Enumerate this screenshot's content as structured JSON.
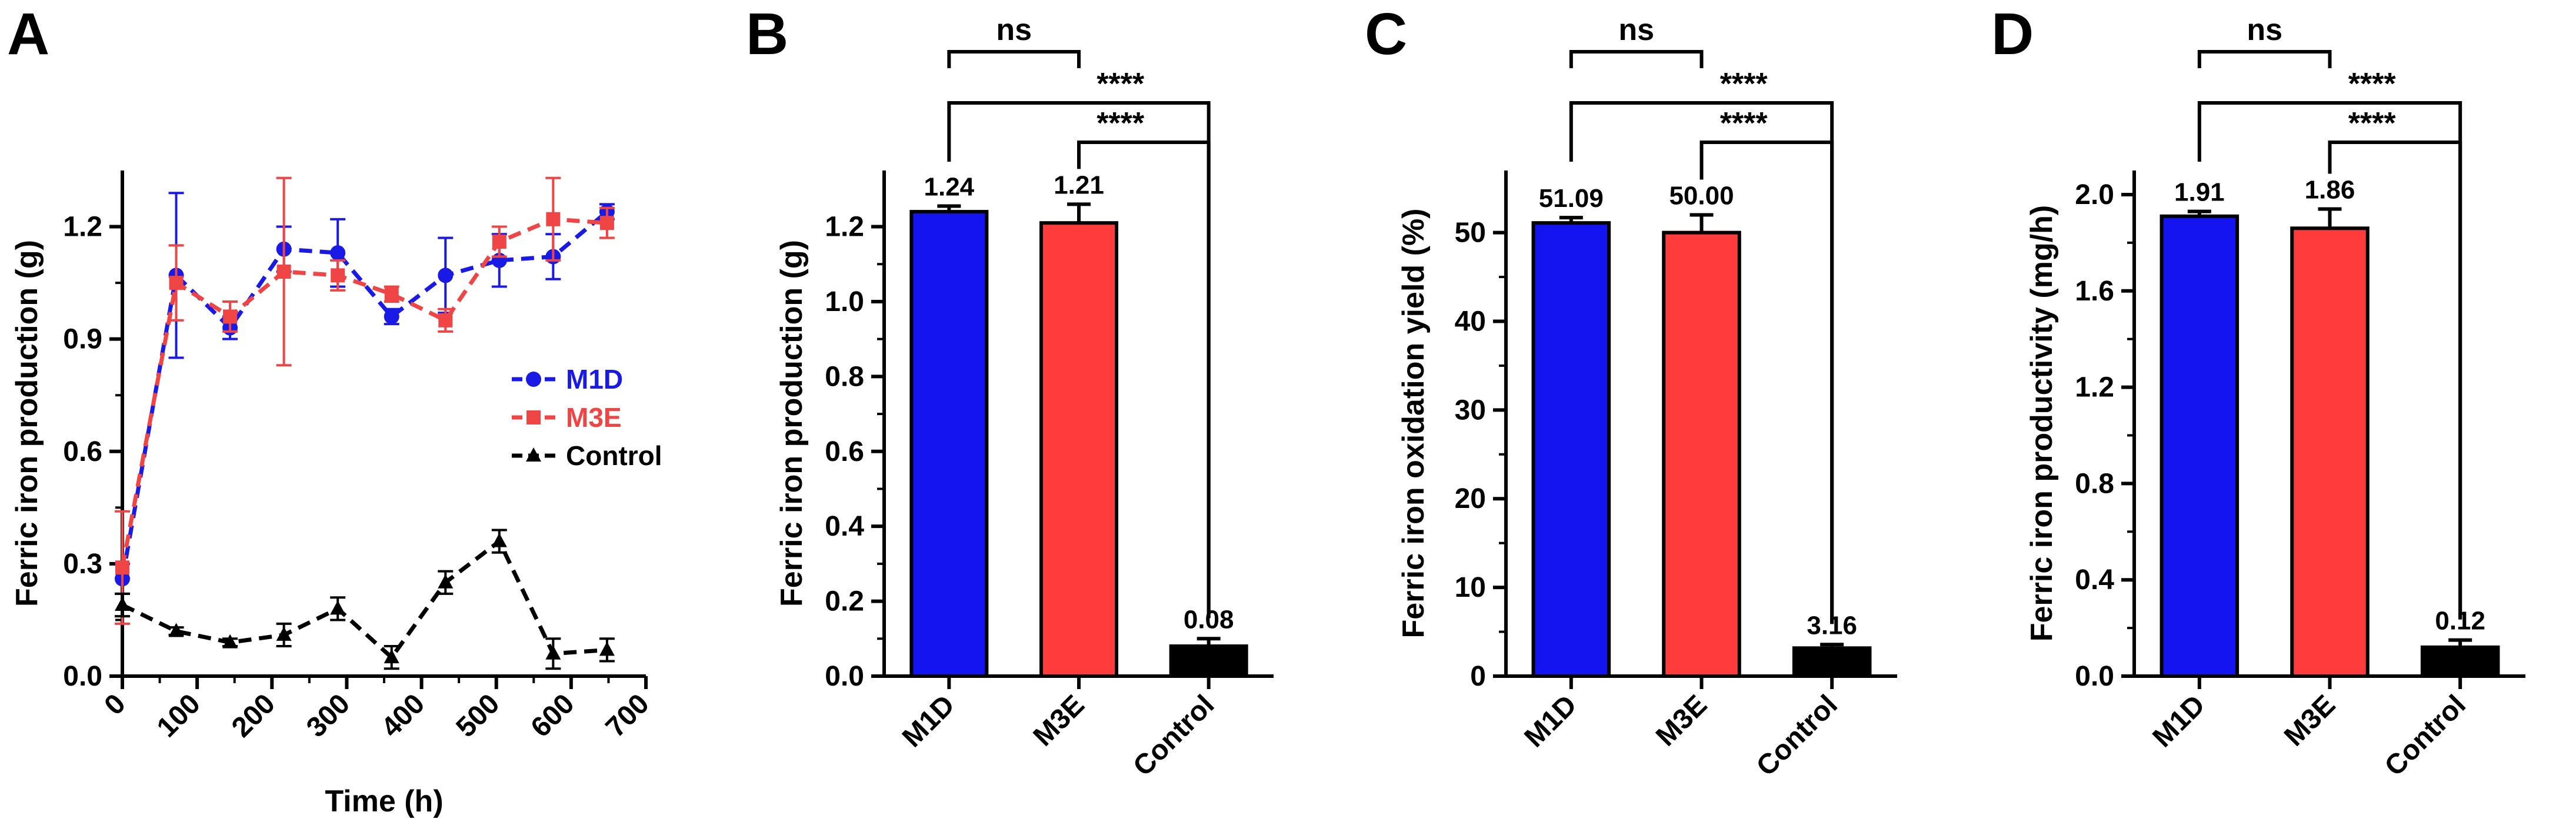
{
  "chart_data": [
    {
      "panel": "A",
      "type": "line",
      "xlabel": "Time (h)",
      "ylabel": "Ferric iron production (g)",
      "xlim": [
        0,
        700
      ],
      "ylim": [
        0,
        1.35
      ],
      "xticks": [
        0,
        100,
        200,
        300,
        400,
        500,
        600,
        700
      ],
      "yticks": [
        0.0,
        0.3,
        0.6,
        0.9,
        1.2
      ],
      "ytick_labels": [
        "0.0",
        "0.3",
        "0.6",
        "0.9",
        "1.2"
      ],
      "legend_position": "right-middle",
      "series": [
        {
          "name": "M1D",
          "color": "#1a1ae6",
          "marker": "circle",
          "x": [
            0,
            72,
            144,
            216,
            288,
            360,
            432,
            504,
            576,
            648
          ],
          "y": [
            0.26,
            1.07,
            0.93,
            1.14,
            1.13,
            0.96,
            1.07,
            1.11,
            1.12,
            1.24
          ],
          "err": [
            0.04,
            0.22,
            0.03,
            0.06,
            0.09,
            0.02,
            0.1,
            0.07,
            0.06,
            0.02
          ]
        },
        {
          "name": "M3E",
          "color": "#f04545",
          "marker": "square",
          "x": [
            0,
            72,
            144,
            216,
            288,
            360,
            432,
            504,
            576,
            648
          ],
          "y": [
            0.29,
            1.05,
            0.96,
            1.08,
            1.07,
            1.02,
            0.95,
            1.16,
            1.22,
            1.21
          ],
          "err": [
            0.15,
            0.1,
            0.04,
            0.25,
            0.04,
            0.02,
            0.03,
            0.04,
            0.11,
            0.04
          ]
        },
        {
          "name": "Control",
          "color": "#000000",
          "marker": "triangle",
          "x": [
            0,
            72,
            144,
            216,
            288,
            360,
            432,
            504,
            576,
            648
          ],
          "y": [
            0.19,
            0.12,
            0.09,
            0.11,
            0.18,
            0.05,
            0.25,
            0.36,
            0.06,
            0.07
          ],
          "err": [
            0.03,
            0.01,
            0.01,
            0.03,
            0.03,
            0.03,
            0.03,
            0.03,
            0.04,
            0.03
          ]
        }
      ]
    },
    {
      "panel": "B",
      "type": "bar",
      "ylabel": "Ferric iron production (g)",
      "categories": [
        "M1D",
        "M3E",
        "Control"
      ],
      "values": [
        1.24,
        1.21,
        0.08
      ],
      "value_labels": [
        "1.24",
        "1.21",
        "0.08"
      ],
      "err": [
        0.015,
        0.05,
        0.02
      ],
      "colors": [
        "#1414f0",
        "#ff3b3b",
        "#000000"
      ],
      "ylim": [
        0,
        1.35
      ],
      "yticks": [
        0.0,
        0.2,
        0.4,
        0.6,
        0.8,
        1.0,
        1.2
      ],
      "ytick_labels": [
        "0.0",
        "0.2",
        "0.4",
        "0.6",
        "0.8",
        "1.0",
        "1.2"
      ],
      "significance": [
        {
          "from": 0,
          "to": 1,
          "label": "ns"
        },
        {
          "from": 0,
          "to": 2,
          "label": "****"
        },
        {
          "from": 1,
          "to": 2,
          "label": "****"
        }
      ]
    },
    {
      "panel": "C",
      "type": "bar",
      "ylabel": "Ferric iron oxidation yield (%)",
      "categories": [
        "M1D",
        "M3E",
        "Control"
      ],
      "values": [
        51.09,
        50.0,
        3.16
      ],
      "value_labels": [
        "51.09",
        "50.00",
        "3.16"
      ],
      "err": [
        0.6,
        2.0,
        0.4
      ],
      "colors": [
        "#1414f0",
        "#ff3b3b",
        "#000000"
      ],
      "ylim": [
        0,
        57
      ],
      "yticks": [
        0,
        10,
        20,
        30,
        40,
        50
      ],
      "ytick_labels": [
        "0",
        "10",
        "20",
        "30",
        "40",
        "50"
      ],
      "significance": [
        {
          "from": 0,
          "to": 1,
          "label": "ns"
        },
        {
          "from": 0,
          "to": 2,
          "label": "****"
        },
        {
          "from": 1,
          "to": 2,
          "label": "****"
        }
      ]
    },
    {
      "panel": "D",
      "type": "bar",
      "ylabel": "Ferric iron productivity (mg/h)",
      "categories": [
        "M1D",
        "M3E",
        "Control"
      ],
      "values": [
        1.91,
        1.86,
        0.12
      ],
      "value_labels": [
        "1.91",
        "1.86",
        "0.12"
      ],
      "err": [
        0.02,
        0.08,
        0.03
      ],
      "colors": [
        "#1414f0",
        "#ff3b3b",
        "#000000"
      ],
      "ylim": [
        0,
        2.1
      ],
      "yticks": [
        0.0,
        0.4,
        0.8,
        1.2,
        1.6,
        2.0
      ],
      "ytick_labels": [
        "0.0",
        "0.4",
        "0.8",
        "1.2",
        "1.6",
        "2.0"
      ],
      "significance": [
        {
          "from": 0,
          "to": 1,
          "label": "ns"
        },
        {
          "from": 0,
          "to": 2,
          "label": "****"
        },
        {
          "from": 1,
          "to": 2,
          "label": "****"
        }
      ]
    }
  ]
}
